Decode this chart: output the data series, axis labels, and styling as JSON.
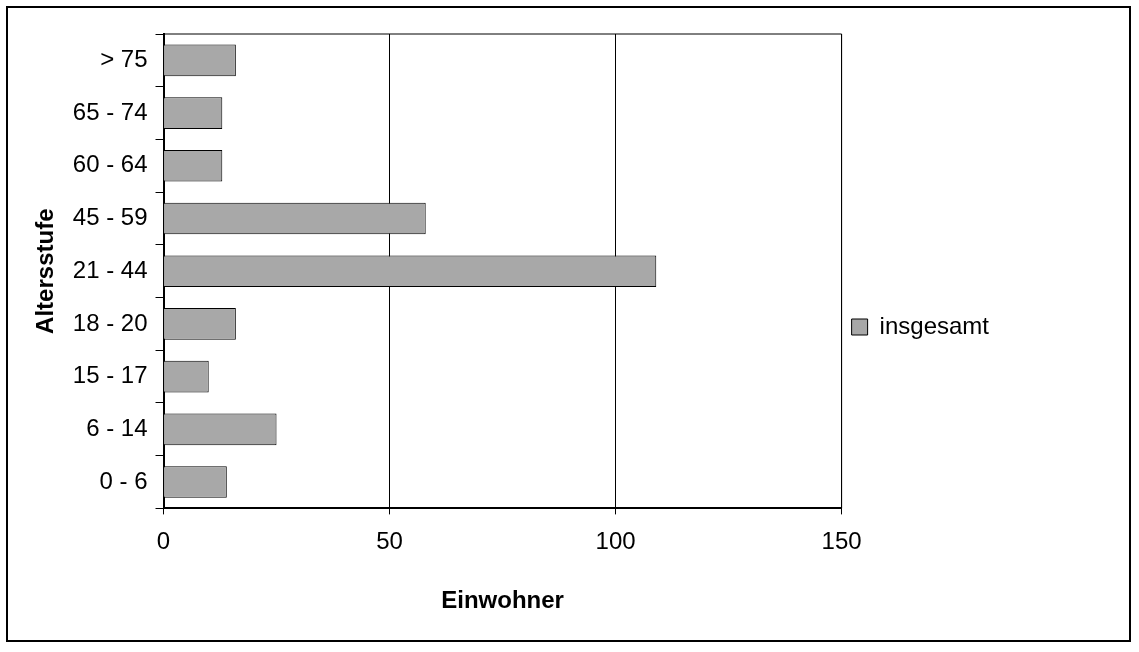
{
  "chart_data": {
    "type": "bar",
    "orientation": "horizontal",
    "xlabel": "Einwohner",
    "ylabel": "Altersstufe",
    "categories": [
      "> 75",
      "65 - 74",
      "60 - 64",
      "45 - 59",
      "21 - 44",
      "18 - 20",
      "15 - 17",
      "6 - 14",
      "0 - 6"
    ],
    "series": [
      {
        "name": "insgesamt",
        "color": "#a8a8a8",
        "values": [
          16,
          13,
          13,
          58,
          109,
          16,
          10,
          25,
          14
        ]
      }
    ],
    "xlim": [
      0,
      150
    ],
    "xticks": [
      0,
      50,
      100,
      150
    ],
    "grid": "x",
    "legend": "right"
  }
}
